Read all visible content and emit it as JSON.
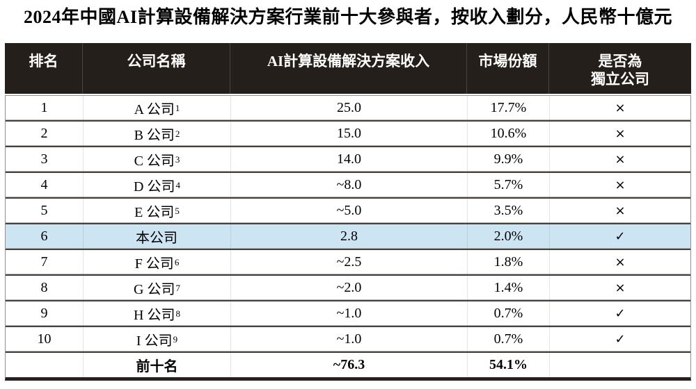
{
  "title": "2024年中國AI計算設備解決方案行業前十大參與者，按收入劃分，人民幣十億元",
  "colors": {
    "header_bg": "#241f1b",
    "header_text": "#ffffff",
    "highlight_row_bg": "#cde4f3",
    "row_separator": "#46413d",
    "bottom_border": "#27221f"
  },
  "table": {
    "header": {
      "rank": "排名",
      "company": "公司名稱",
      "revenue": "AI計算設備解決方案收入",
      "share": "市場份額",
      "independent_line1": "是否為",
      "independent_line2": "獨立公司"
    },
    "rows": [
      {
        "rank": "1",
        "company": "A 公司",
        "sup": "1",
        "revenue": "25.0",
        "share": "17.7%",
        "independent": "×",
        "highlight": false
      },
      {
        "rank": "2",
        "company": "B 公司",
        "sup": "2",
        "revenue": "15.0",
        "share": "10.6%",
        "independent": "×",
        "highlight": false
      },
      {
        "rank": "3",
        "company": "C 公司",
        "sup": "3",
        "revenue": "14.0",
        "share": "9.9%",
        "independent": "×",
        "highlight": false
      },
      {
        "rank": "4",
        "company": "D 公司",
        "sup": "4",
        "revenue": "~8.0",
        "share": "5.7%",
        "independent": "×",
        "highlight": false
      },
      {
        "rank": "5",
        "company": "E 公司",
        "sup": "5",
        "revenue": "~5.0",
        "share": "3.5%",
        "independent": "×",
        "highlight": false
      },
      {
        "rank": "6",
        "company": "本公司",
        "sup": "",
        "revenue": "2.8",
        "share": "2.0%",
        "independent": "✓",
        "highlight": true
      },
      {
        "rank": "7",
        "company": "F 公司",
        "sup": "6",
        "revenue": "~2.5",
        "share": "1.8%",
        "independent": "×",
        "highlight": false
      },
      {
        "rank": "8",
        "company": "G 公司",
        "sup": "7",
        "revenue": "~2.0",
        "share": "1.4%",
        "independent": "×",
        "highlight": false
      },
      {
        "rank": "9",
        "company": "H 公司",
        "sup": "8",
        "revenue": "~1.0",
        "share": "0.7%",
        "independent": "✓",
        "highlight": false
      },
      {
        "rank": "10",
        "company": "I 公司",
        "sup": "9",
        "revenue": "~1.0",
        "share": "0.7%",
        "independent": "✓",
        "highlight": false
      }
    ],
    "total": {
      "rank": "",
      "company": "前十名",
      "revenue": "~76.3",
      "share": "54.1%",
      "independent": ""
    }
  }
}
